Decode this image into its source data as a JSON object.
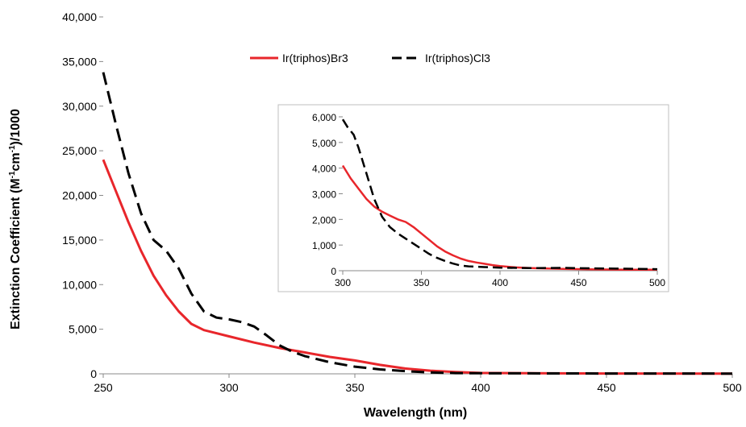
{
  "chart_data": [
    {
      "id": "main",
      "type": "line",
      "title": "",
      "xlabel": "Wavelength (nm)",
      "ylabel": "Extinction Coefficient (M-1cm-1)/1000",
      "ylabel_parts": {
        "a": "Extinction Coefficient (M",
        "b": "-1",
        "c": "cm",
        "d": "-1",
        "e": ")/1000"
      },
      "xlim": [
        250,
        500
      ],
      "ylim": [
        0,
        40000
      ],
      "x_ticks": [
        250,
        300,
        350,
        400,
        450,
        500
      ],
      "x_tick_labels": [
        "250",
        "300",
        "350",
        "400",
        "450",
        "500"
      ],
      "y_ticks": [
        0,
        5000,
        10000,
        15000,
        20000,
        25000,
        30000,
        35000,
        40000
      ],
      "y_tick_labels": [
        "0",
        "5,000",
        "10,000",
        "15,000",
        "20,000",
        "25,000",
        "30,000",
        "35,000",
        "40,000"
      ],
      "grid": false,
      "legend_position": "top",
      "series": [
        {
          "name": "Ir(triphos)Br3",
          "color": "#e8262b",
          "style": "solid",
          "points": [
            [
              250,
              24000
            ],
            [
              255,
              20500
            ],
            [
              260,
              17000
            ],
            [
              265,
              13800
            ],
            [
              270,
              11000
            ],
            [
              275,
              8800
            ],
            [
              280,
              7000
            ],
            [
              285,
              5600
            ],
            [
              290,
              4900
            ],
            [
              300,
              4200
            ],
            [
              310,
              3500
            ],
            [
              320,
              2900
            ],
            [
              330,
              2400
            ],
            [
              340,
              1900
            ],
            [
              350,
              1500
            ],
            [
              360,
              1000
            ],
            [
              370,
              600
            ],
            [
              380,
              350
            ],
            [
              390,
              200
            ],
            [
              400,
              100
            ],
            [
              420,
              60
            ],
            [
              450,
              40
            ],
            [
              500,
              30
            ]
          ]
        },
        {
          "name": "Ir(triphos)Cl3",
          "color": "#000000",
          "style": "dashed",
          "points": [
            [
              250,
              33800
            ],
            [
              255,
              28000
            ],
            [
              260,
              22500
            ],
            [
              265,
              18000
            ],
            [
              270,
              15000
            ],
            [
              275,
              13800
            ],
            [
              280,
              11800
            ],
            [
              285,
              9000
            ],
            [
              290,
              7000
            ],
            [
              295,
              6300
            ],
            [
              300,
              6100
            ],
            [
              305,
              5800
            ],
            [
              310,
              5300
            ],
            [
              315,
              4300
            ],
            [
              320,
              3200
            ],
            [
              325,
              2500
            ],
            [
              330,
              2000
            ],
            [
              340,
              1300
            ],
            [
              350,
              800
            ],
            [
              360,
              500
            ],
            [
              370,
              300
            ],
            [
              380,
              150
            ],
            [
              390,
              80
            ],
            [
              400,
              60
            ],
            [
              450,
              40
            ],
            [
              500,
              30
            ]
          ]
        }
      ]
    },
    {
      "id": "inset",
      "type": "line",
      "xlim": [
        300,
        500
      ],
      "ylim": [
        0,
        6000
      ],
      "x_ticks": [
        300,
        350,
        400,
        450,
        500
      ],
      "x_tick_labels": [
        "300",
        "350",
        "400",
        "450",
        "500"
      ],
      "y_ticks": [
        0,
        1000,
        2000,
        3000,
        4000,
        5000,
        6000
      ],
      "y_tick_labels": [
        "0",
        "1,000",
        "2,000",
        "3,000",
        "4,000",
        "5,000",
        "6,000"
      ],
      "grid": false,
      "series": [
        {
          "name": "Ir(triphos)Br3",
          "color": "#e8262b",
          "style": "solid",
          "points": [
            [
              300,
              4100
            ],
            [
              305,
              3600
            ],
            [
              310,
              3200
            ],
            [
              315,
              2800
            ],
            [
              320,
              2500
            ],
            [
              325,
              2300
            ],
            [
              330,
              2150
            ],
            [
              335,
              2000
            ],
            [
              340,
              1900
            ],
            [
              345,
              1700
            ],
            [
              350,
              1450
            ],
            [
              355,
              1200
            ],
            [
              360,
              950
            ],
            [
              365,
              750
            ],
            [
              370,
              600
            ],
            [
              375,
              470
            ],
            [
              380,
              380
            ],
            [
              385,
              320
            ],
            [
              390,
              270
            ],
            [
              395,
              220
            ],
            [
              400,
              180
            ],
            [
              410,
              130
            ],
            [
              420,
              100
            ],
            [
              440,
              70
            ],
            [
              460,
              50
            ],
            [
              480,
              40
            ],
            [
              500,
              40
            ]
          ]
        },
        {
          "name": "Ir(triphos)Cl3",
          "color": "#000000",
          "style": "dashed",
          "points": [
            [
              300,
              5900
            ],
            [
              303,
              5600
            ],
            [
              307,
              5300
            ],
            [
              310,
              4800
            ],
            [
              315,
              3800
            ],
            [
              320,
              2800
            ],
            [
              325,
              2100
            ],
            [
              330,
              1700
            ],
            [
              335,
              1450
            ],
            [
              340,
              1250
            ],
            [
              345,
              1050
            ],
            [
              350,
              850
            ],
            [
              355,
              650
            ],
            [
              360,
              500
            ],
            [
              365,
              380
            ],
            [
              370,
              280
            ],
            [
              375,
              200
            ],
            [
              380,
              170
            ],
            [
              390,
              140
            ],
            [
              400,
              120
            ],
            [
              420,
              100
            ],
            [
              440,
              110
            ],
            [
              460,
              90
            ],
            [
              480,
              80
            ],
            [
              500,
              60
            ]
          ]
        }
      ]
    }
  ]
}
